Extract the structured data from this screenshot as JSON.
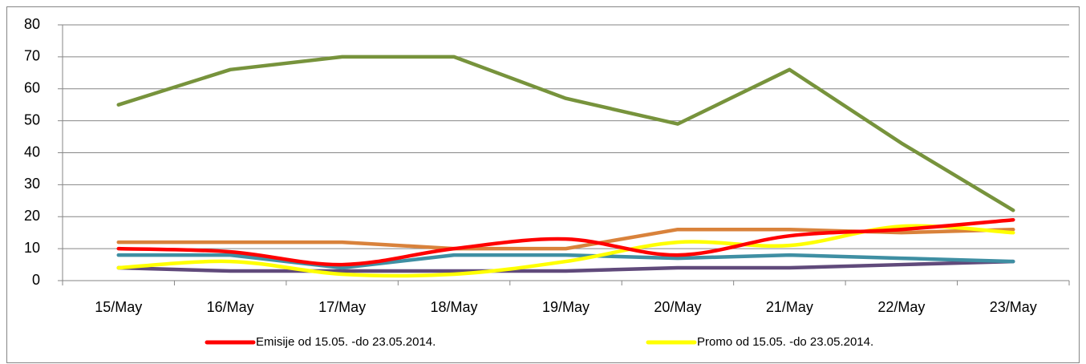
{
  "chart_data": {
    "type": "line",
    "categories": [
      "15/May",
      "16/May",
      "17/May",
      "18/May",
      "19/May",
      "20/May",
      "21/May",
      "22/May",
      "23/May"
    ],
    "series": [
      {
        "name": "Emisije od 15.05. -do 23.05.2014.",
        "color": "#ff0000",
        "smooth": true,
        "values": [
          10,
          9,
          5,
          10,
          13,
          8,
          14,
          16,
          19
        ]
      },
      {
        "name": "Promo od 15.05. -do 23.05.2014.",
        "color": "#ffff00",
        "smooth": true,
        "values": [
          4,
          6,
          2,
          2,
          6,
          12,
          11,
          17,
          15
        ]
      },
      {
        "color": "#77933c",
        "smooth": false,
        "values": [
          55,
          66,
          70,
          70,
          57,
          49,
          66,
          43,
          22
        ]
      },
      {
        "color": "#d9823b",
        "smooth": false,
        "values": [
          12,
          12,
          12,
          10,
          10,
          16,
          16,
          15,
          16
        ]
      },
      {
        "color": "#3f8fa3",
        "smooth": false,
        "values": [
          8,
          8,
          4,
          8,
          8,
          7,
          8,
          7,
          6
        ]
      },
      {
        "color": "#604a7b",
        "smooth": false,
        "values": [
          4,
          3,
          3,
          3,
          3,
          4,
          4,
          5,
          6
        ]
      }
    ],
    "ylim": [
      0,
      80
    ],
    "yticks": [
      0,
      10,
      20,
      30,
      40,
      50,
      60,
      70,
      80
    ],
    "grid": true,
    "legend": "bottom"
  }
}
